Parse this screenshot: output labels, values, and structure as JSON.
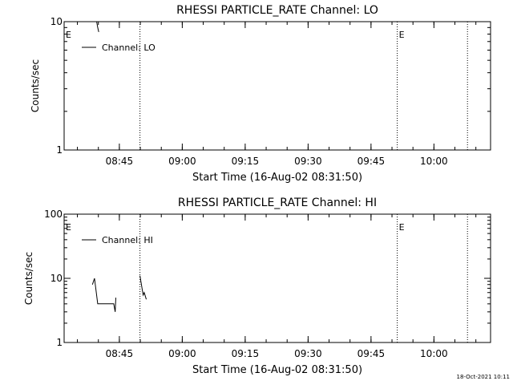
{
  "footer": {
    "timestamp": "18-Oct-2021 10:11"
  },
  "colors": {
    "background": "#ffffff",
    "foreground": "#000000"
  },
  "chart_data": [
    {
      "type": "line",
      "title": "RHESSI PARTICLE_RATE Channel: LO",
      "xlabel": "Start Time (16-Aug-02 08:31:50)",
      "ylabel": "Counts/sec",
      "yscale": "log",
      "ylim": [
        1,
        10
      ],
      "y_ticks": [
        1,
        10
      ],
      "y_tick_labels": [
        "1",
        "10"
      ],
      "xlim": [
        "08:31:50",
        "10:13:30"
      ],
      "x_ticks": [
        "08:45",
        "09:00",
        "09:15",
        "09:30",
        "09:45",
        "10:00"
      ],
      "grid": false,
      "legend": "top-left",
      "series": [
        {
          "name": "Channel: LO",
          "points": [
            [
              "08:39:35",
              10
            ],
            [
              "08:39:50",
              9.0
            ],
            [
              "08:40:05",
              8.3
            ]
          ]
        }
      ],
      "event_lines": [
        "08:49:55",
        "09:51:15",
        "10:08:00"
      ],
      "event_markers": [
        {
          "label": "E",
          "time": "08:31:50"
        },
        {
          "label": "E",
          "time": "09:51:15"
        }
      ]
    },
    {
      "type": "line",
      "title": "RHESSI PARTICLE_RATE Channel: HI",
      "xlabel": "Start Time (16-Aug-02 08:31:50)",
      "ylabel": "Counts/sec",
      "yscale": "log",
      "ylim": [
        1,
        100
      ],
      "y_ticks": [
        1,
        10,
        100
      ],
      "y_tick_labels": [
        "1",
        "10",
        "100"
      ],
      "xlim": [
        "08:31:50",
        "10:13:30"
      ],
      "x_ticks": [
        "08:45",
        "09:00",
        "09:15",
        "09:30",
        "09:45",
        "10:00"
      ],
      "grid": false,
      "legend": "top-left",
      "series": [
        {
          "name": "Channel: HI",
          "segments": [
            [
              [
                "08:38:35",
                8
              ],
              [
                "08:39:05",
                10
              ],
              [
                "08:39:50",
                4
              ],
              [
                "08:43:40",
                4
              ],
              [
                "08:44:00",
                3
              ],
              [
                "08:44:10",
                5
              ]
            ],
            [
              [
                "08:49:55",
                11
              ],
              [
                "08:50:25",
                7
              ],
              [
                "08:50:40",
                5.5
              ],
              [
                "08:50:55",
                6
              ],
              [
                "08:51:25",
                4.7
              ]
            ]
          ]
        }
      ],
      "event_lines": [
        "08:49:55",
        "09:51:15",
        "10:08:00"
      ],
      "event_markers": [
        {
          "label": "E",
          "time": "08:31:50"
        },
        {
          "label": "E",
          "time": "09:51:15"
        }
      ]
    }
  ]
}
